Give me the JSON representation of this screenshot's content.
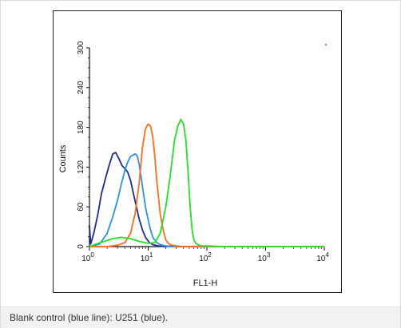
{
  "chart_data": {
    "type": "line",
    "ylabel": "Counts",
    "xlabel": "FL1-H",
    "x_scale": "log",
    "xlim": [
      1,
      10000
    ],
    "ylim": [
      0,
      300
    ],
    "x_ticks": [
      {
        "value": 1,
        "base": "10",
        "exp": "0"
      },
      {
        "value": 10,
        "base": "10",
        "exp": "1"
      },
      {
        "value": 100,
        "base": "10",
        "exp": "2"
      },
      {
        "value": 1000,
        "base": "10",
        "exp": "3"
      },
      {
        "value": 10000,
        "base": "10",
        "exp": "4"
      }
    ],
    "y_ticks": [
      "0",
      "60",
      "120",
      "180",
      "240",
      "300"
    ],
    "y_tick_values": [
      0,
      60,
      120,
      180,
      240,
      300
    ],
    "grid": false,
    "legend": "none",
    "series": [
      {
        "color": "#1f2b8f",
        "x": [
          1.0,
          1.05,
          1.2,
          1.4,
          1.6,
          1.9,
          2.2,
          2.5,
          2.8,
          3.2,
          3.6,
          4.0,
          4.5,
          5.0,
          5.6,
          6.3,
          7.0,
          8.0,
          9.0,
          10.5,
          12,
          15,
          20,
          25,
          30,
          50,
          100
        ],
        "y": [
          32,
          4,
          22,
          50,
          80,
          105,
          125,
          140,
          142,
          132,
          122,
          118,
          112,
          100,
          80,
          60,
          42,
          25,
          14,
          6,
          3,
          1,
          0,
          1,
          0,
          0,
          0
        ]
      },
      {
        "color": "#2a93e0",
        "x": [
          1.0,
          1.5,
          2.0,
          2.5,
          3.0,
          3.5,
          4.0,
          4.5,
          5.0,
          5.5,
          6.0,
          6.5,
          7.0,
          7.5,
          8.0,
          9.0,
          10,
          11,
          12,
          14,
          16,
          20,
          25,
          30,
          100
        ],
        "y": [
          0,
          4,
          20,
          45,
          70,
          95,
          115,
          128,
          136,
          138,
          140,
          137,
          125,
          108,
          90,
          60,
          40,
          25,
          14,
          6,
          3,
          1,
          0,
          0,
          0
        ]
      },
      {
        "color": "#ff6a1a",
        "x": [
          1.0,
          2.0,
          3.0,
          4.0,
          5.0,
          6.0,
          7.0,
          8.0,
          9.0,
          10.0,
          11.0,
          12.0,
          13.0,
          14.0,
          15.0,
          16.0,
          18.0,
          20.0,
          22.0,
          25.0,
          30.0,
          40.0,
          60.0,
          100,
          1000,
          3000,
          10000
        ],
        "y": [
          0,
          0,
          2,
          6,
          20,
          50,
          95,
          150,
          178,
          185,
          182,
          165,
          135,
          100,
          75,
          50,
          25,
          10,
          5,
          2,
          1,
          0,
          0,
          0,
          0,
          0,
          0
        ]
      },
      {
        "color": "#22e022",
        "x": [
          1.0,
          1.3,
          1.8,
          2.5,
          3.5,
          5.0,
          7.0,
          10.0,
          13.0,
          16.0,
          20.0,
          24.0,
          28.0,
          32.0,
          36.0,
          40.0,
          44.0,
          48.0,
          52.0,
          56.0,
          60.0,
          65.0,
          70.0,
          80.0,
          100,
          200,
          1000,
          10000
        ],
        "y": [
          0,
          4,
          8,
          12,
          14,
          12,
          8,
          5,
          6,
          20,
          60,
          110,
          160,
          182,
          192,
          185,
          160,
          110,
          60,
          25,
          10,
          5,
          3,
          1,
          1,
          0,
          0,
          0
        ]
      }
    ]
  },
  "caption": "Blank control (blue line): U251 (blue)."
}
